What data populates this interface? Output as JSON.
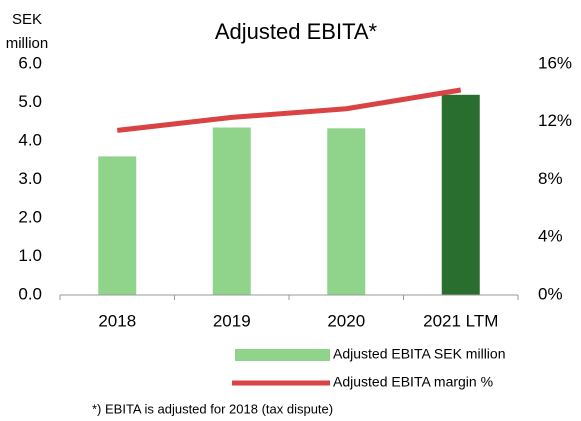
{
  "chart_data": {
    "type": "bar_line",
    "title": "Adjusted EBITA*",
    "ylabel_lines": [
      "SEK",
      "million"
    ],
    "categories": [
      "2018",
      "2019",
      "2020",
      "2021 LTM"
    ],
    "series": [
      {
        "name": "Adjusted EBITA SEK million",
        "type": "bar",
        "color": "#90d38a",
        "colors": [
          "#90d38a",
          "#90d38a",
          "#90d38a",
          "#2a6e2f"
        ],
        "values": [
          3.6,
          4.35,
          4.33,
          5.2
        ]
      },
      {
        "name": "Adjusted EBITA margin %",
        "type": "line",
        "axis": "y2",
        "color": "#d94343",
        "values": [
          11.4,
          12.3,
          12.9,
          14.2
        ]
      }
    ],
    "ylim": [
      0,
      6
    ],
    "yticks": [
      {
        "value": 0,
        "label": "0.0"
      },
      {
        "value": 1,
        "label": "1.0"
      },
      {
        "value": 2,
        "label": "2.0"
      },
      {
        "value": 3,
        "label": "3.0"
      },
      {
        "value": 4,
        "label": "4.0"
      },
      {
        "value": 5,
        "label": "5.0"
      },
      {
        "value": 6,
        "label": "6.0"
      }
    ],
    "y2lim": [
      0,
      16
    ],
    "y2ticks": [
      {
        "value": 0,
        "label": "0%"
      },
      {
        "value": 4,
        "label": "4%"
      },
      {
        "value": 8,
        "label": "8%"
      },
      {
        "value": 12,
        "label": "12%"
      },
      {
        "value": 16,
        "label": "16%"
      }
    ],
    "footnote": "*) EBITA is adjusted for 2018 (tax dispute)"
  }
}
